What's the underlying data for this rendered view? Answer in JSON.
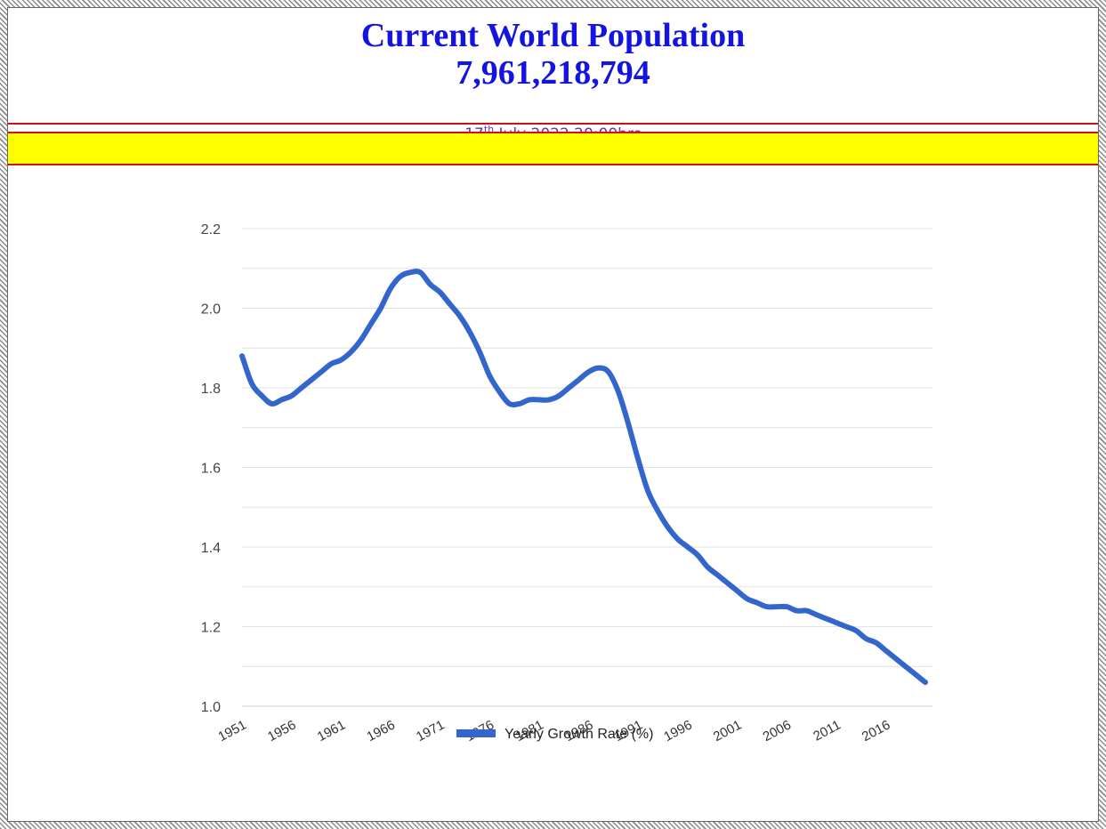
{
  "header": {
    "title": "Current World Population",
    "population": "7,961,218,794",
    "date_day": "17",
    "date_suffix": "th",
    "date_rest": " July,2022 20:00hrs"
  },
  "colors": {
    "title": "#1414e0",
    "date": "#7a2d9e",
    "band": "#ffff00",
    "rule": "#d01010",
    "series": "#3366cc"
  },
  "chart_data": {
    "type": "line",
    "title": "",
    "xlabel": "",
    "ylabel": "",
    "ylim": [
      1.0,
      2.2
    ],
    "xlim": [
      1951,
      2020
    ],
    "y_ticks": [
      "1.0",
      "1.2",
      "1.4",
      "1.6",
      "1.8",
      "2.0",
      "2.2"
    ],
    "x_ticks": [
      "1951",
      "1956",
      "1961",
      "1966",
      "1971",
      "1976",
      "1981",
      "1986",
      "1991",
      "1996",
      "2001",
      "2006",
      "2011",
      "2016"
    ],
    "grid": true,
    "legend_position": "bottom-center",
    "series": [
      {
        "name": "Yearly Growth Rate (%)",
        "x": [
          1951,
          1952,
          1953,
          1954,
          1955,
          1956,
          1957,
          1958,
          1959,
          1960,
          1961,
          1962,
          1963,
          1964,
          1965,
          1966,
          1967,
          1968,
          1969,
          1970,
          1971,
          1972,
          1973,
          1974,
          1975,
          1976,
          1977,
          1978,
          1979,
          1980,
          1981,
          1982,
          1983,
          1984,
          1985,
          1986,
          1987,
          1988,
          1989,
          1990,
          1991,
          1992,
          1993,
          1994,
          1995,
          1996,
          1997,
          1998,
          1999,
          2000,
          2001,
          2002,
          2003,
          2004,
          2005,
          2006,
          2007,
          2008,
          2009,
          2010,
          2011,
          2012,
          2013,
          2014,
          2015,
          2016,
          2017,
          2018,
          2019,
          2020
        ],
        "values": [
          1.88,
          1.81,
          1.78,
          1.76,
          1.77,
          1.78,
          1.8,
          1.82,
          1.84,
          1.86,
          1.87,
          1.89,
          1.92,
          1.96,
          2.0,
          2.05,
          2.08,
          2.09,
          2.09,
          2.06,
          2.04,
          2.01,
          1.98,
          1.94,
          1.89,
          1.83,
          1.79,
          1.76,
          1.76,
          1.77,
          1.77,
          1.77,
          1.78,
          1.8,
          1.82,
          1.84,
          1.85,
          1.84,
          1.79,
          1.71,
          1.62,
          1.54,
          1.49,
          1.45,
          1.42,
          1.4,
          1.38,
          1.35,
          1.33,
          1.31,
          1.29,
          1.27,
          1.26,
          1.25,
          1.25,
          1.25,
          1.24,
          1.24,
          1.23,
          1.22,
          1.21,
          1.2,
          1.19,
          1.17,
          1.16,
          1.14,
          1.12,
          1.1,
          1.08,
          1.06
        ]
      }
    ]
  }
}
